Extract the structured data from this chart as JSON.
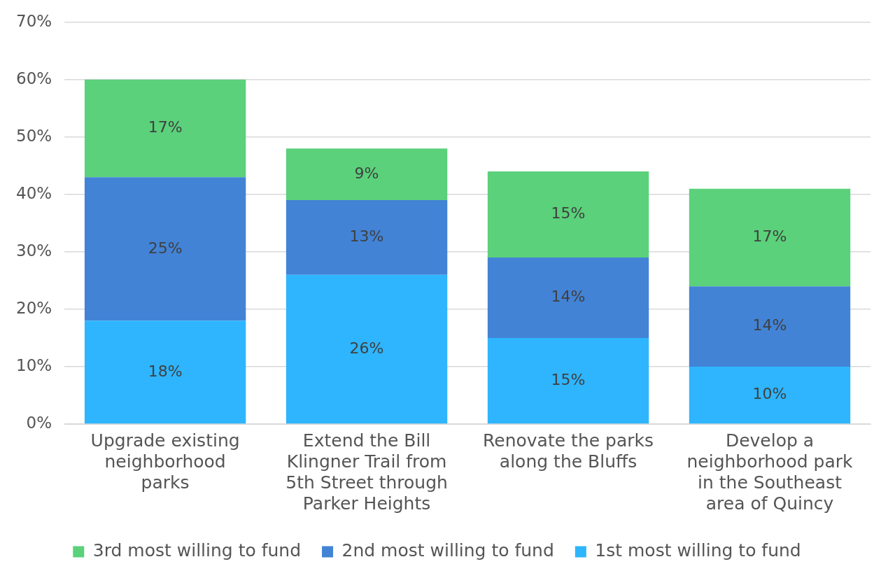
{
  "chart_data": {
    "type": "bar",
    "stacked": true,
    "categories": [
      "Upgrade existing neighborhood parks",
      "Extend the Bill Klingner Trail from 5th Street through Parker Heights",
      "Renovate the parks along the Bluffs",
      "Develop a neighborhood park in the Southeast area of Quincy"
    ],
    "series": [
      {
        "name": "1st most willing to fund",
        "color": "#2eb5fd",
        "values": [
          18,
          26,
          15,
          10
        ],
        "value_labels": [
          "18%",
          "26%",
          "15%",
          "10%"
        ]
      },
      {
        "name": "2nd most willing to fund",
        "color": "#4283d6",
        "values": [
          25,
          13,
          14,
          14
        ],
        "value_labels": [
          "25%",
          "13%",
          "14%",
          "14%"
        ]
      },
      {
        "name": "3rd most willing to fund",
        "color": "#5ad17a",
        "values": [
          17,
          9,
          15,
          17
        ],
        "value_labels": [
          "17%",
          "9%",
          "15%",
          "17%"
        ]
      }
    ],
    "ylim": [
      0,
      70
    ],
    "yticks": [
      {
        "value": 0,
        "label": "0%"
      },
      {
        "value": 10,
        "label": "10%"
      },
      {
        "value": 20,
        "label": "20%"
      },
      {
        "value": 30,
        "label": "30%"
      },
      {
        "value": 40,
        "label": "40%"
      },
      {
        "value": 50,
        "label": "50%"
      },
      {
        "value": 60,
        "label": "60%"
      },
      {
        "value": 70,
        "label": "70%"
      }
    ],
    "grid": "y",
    "legend": "bottom"
  }
}
